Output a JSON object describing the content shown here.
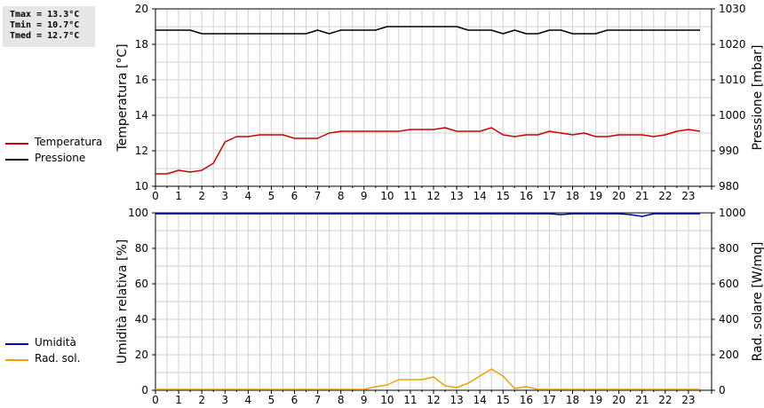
{
  "stats": {
    "tmax": "Tmax = 13.3°C",
    "tmin": "Tmin = 10.7°C",
    "tmed": "Tmed = 12.7°C"
  },
  "legends": {
    "top": [
      {
        "label": "Temperatura",
        "color": "#cc0000"
      },
      {
        "label": "Pressione",
        "color": "#000000"
      }
    ],
    "bottom": [
      {
        "label": "Umidità",
        "color": "#0000aa"
      },
      {
        "label": "Rad. sol.",
        "color": "#f0a000"
      }
    ]
  },
  "chart_data": [
    {
      "type": "line",
      "xlim": [
        0,
        24
      ],
      "x_ticks": [
        "0",
        "1",
        "2",
        "3",
        "4",
        "5",
        "6",
        "7",
        "8",
        "9",
        "10",
        "11",
        "12",
        "13",
        "14",
        "15",
        "16",
        "17",
        "18",
        "19",
        "20",
        "21",
        "22",
        "23"
      ],
      "ylabel": "Temperatura [°C]",
      "ylim": [
        10,
        20
      ],
      "y_ticks": [
        "10",
        "12",
        "14",
        "16",
        "18",
        "20"
      ],
      "y2label": "Pressione [mbar]",
      "y2lim": [
        980,
        1030
      ],
      "y2_ticks": [
        "980",
        "990",
        "1000",
        "1010",
        "1020",
        "1030"
      ],
      "grid": true,
      "series": [
        {
          "name": "Temperatura",
          "axis": "left",
          "color": "#cc0000",
          "x": [
            0,
            0.5,
            1,
            1.5,
            2,
            2.5,
            3,
            3.5,
            4,
            4.5,
            5,
            5.5,
            6,
            6.5,
            7,
            7.5,
            8,
            8.5,
            9,
            9.5,
            10,
            10.5,
            11,
            11.5,
            12,
            12.5,
            13,
            13.5,
            14,
            14.5,
            15,
            15.5,
            16,
            16.5,
            17,
            17.5,
            18,
            18.5,
            19,
            19.5,
            20,
            20.5,
            21,
            21.5,
            22,
            22.5,
            23,
            23.5
          ],
          "y": [
            10.7,
            10.7,
            10.9,
            10.8,
            10.9,
            11.3,
            12.5,
            12.8,
            12.8,
            12.9,
            12.9,
            12.9,
            12.7,
            12.7,
            12.7,
            13.0,
            13.1,
            13.1,
            13.1,
            13.1,
            13.1,
            13.1,
            13.2,
            13.2,
            13.2,
            13.3,
            13.1,
            13.1,
            13.1,
            13.3,
            12.9,
            12.8,
            12.9,
            12.9,
            13.1,
            13.0,
            12.9,
            13.0,
            12.8,
            12.8,
            12.9,
            12.9,
            12.9,
            12.8,
            12.9,
            13.1,
            13.2,
            13.1
          ]
        },
        {
          "name": "Pressione",
          "axis": "right",
          "color": "#000000",
          "x": [
            0,
            0.5,
            1,
            1.5,
            2,
            2.5,
            3,
            3.5,
            4,
            4.5,
            5,
            5.5,
            6,
            6.5,
            7,
            7.5,
            8,
            8.5,
            9,
            9.5,
            10,
            10.5,
            11,
            11.5,
            12,
            12.5,
            13,
            13.5,
            14,
            14.5,
            15,
            15.5,
            16,
            16.5,
            17,
            17.5,
            18,
            18.5,
            19,
            19.5,
            20,
            20.5,
            21,
            21.5,
            22,
            22.5,
            23,
            23.5
          ],
          "y": [
            1024,
            1024,
            1024,
            1024,
            1023,
            1023,
            1023,
            1023,
            1023,
            1023,
            1023,
            1023,
            1023,
            1023,
            1024,
            1023,
            1024,
            1024,
            1024,
            1024,
            1025,
            1025,
            1025,
            1025,
            1025,
            1025,
            1025,
            1024,
            1024,
            1024,
            1023,
            1024,
            1023,
            1023,
            1024,
            1024,
            1023,
            1023,
            1023,
            1024,
            1024,
            1024,
            1024,
            1024,
            1024,
            1024,
            1024,
            1024
          ]
        }
      ]
    },
    {
      "type": "line",
      "xlim": [
        0,
        24
      ],
      "x_ticks": [
        "0",
        "1",
        "2",
        "3",
        "4",
        "5",
        "6",
        "7",
        "8",
        "9",
        "10",
        "11",
        "12",
        "13",
        "14",
        "15",
        "16",
        "17",
        "18",
        "19",
        "20",
        "21",
        "22",
        "23"
      ],
      "ylabel": "Umidità relativa [%]",
      "ylim": [
        0,
        100
      ],
      "y_ticks": [
        "0",
        "20",
        "40",
        "60",
        "80",
        "100"
      ],
      "y2label": "Rad. solare [W/mq]",
      "y2lim": [
        0,
        1000
      ],
      "y2_ticks": [
        "0",
        "200",
        "400",
        "600",
        "800",
        "1000"
      ],
      "grid": true,
      "series": [
        {
          "name": "Umidità",
          "axis": "left",
          "color": "#0000aa",
          "x": [
            0,
            1,
            2,
            3,
            4,
            5,
            6,
            7,
            8,
            9,
            10,
            11,
            12,
            13,
            14,
            15,
            16,
            17,
            17.5,
            18,
            19,
            20,
            20.5,
            21,
            21.5,
            22,
            23,
            23.5
          ],
          "y": [
            100,
            100,
            100,
            100,
            100,
            100,
            100,
            100,
            100,
            100,
            100,
            100,
            100,
            100,
            100,
            100,
            100,
            100,
            99,
            100,
            100,
            100,
            99,
            98,
            100,
            100,
            100,
            100
          ]
        },
        {
          "name": "Rad. sol.",
          "axis": "right",
          "color": "#f0a000",
          "x": [
            0,
            1,
            2,
            3,
            4,
            5,
            6,
            7,
            8,
            9,
            9.5,
            10,
            10.5,
            11,
            11.5,
            12,
            12.5,
            13,
            13.5,
            14,
            14.5,
            15,
            15.5,
            16,
            16.5,
            17,
            18,
            19,
            20,
            21,
            22,
            23,
            23.5
          ],
          "y": [
            5,
            5,
            5,
            5,
            5,
            5,
            5,
            5,
            5,
            5,
            20,
            30,
            60,
            60,
            60,
            75,
            25,
            15,
            40,
            80,
            120,
            80,
            10,
            20,
            5,
            5,
            5,
            5,
            5,
            5,
            5,
            5,
            5
          ]
        }
      ]
    }
  ]
}
